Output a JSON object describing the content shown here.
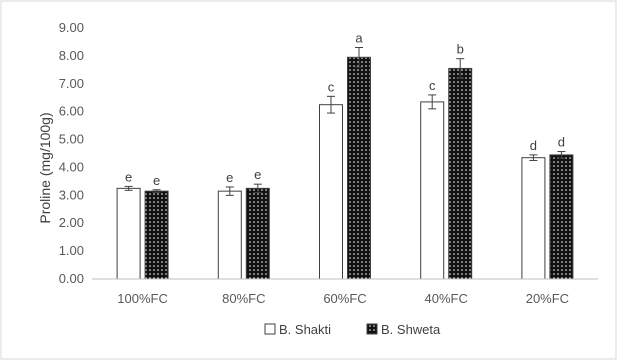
{
  "chart_data": {
    "type": "bar",
    "title": "",
    "xlabel": "",
    "ylabel": "Proline (mg/100g)",
    "ylim": [
      0,
      9
    ],
    "ytick_step": 1,
    "ytick_labels": [
      "0.00",
      "1.00",
      "2.00",
      "3.00",
      "4.00",
      "5.00",
      "6.00",
      "7.00",
      "8.00",
      "9.00"
    ],
    "categories": [
      "100%FC",
      "80%FC",
      "60%FC",
      "40%FC",
      "20%FC"
    ],
    "grid": false,
    "legend_position": "bottom",
    "series": [
      {
        "name": "B. Shakti",
        "fill": "white",
        "values": [
          3.25,
          3.15,
          6.25,
          6.35,
          4.35
        ],
        "errors": [
          0.07,
          0.15,
          0.3,
          0.25,
          0.1
        ],
        "letters": [
          "e",
          "e",
          "c",
          "c",
          "d"
        ]
      },
      {
        "name": "B. Shweta",
        "fill": "dotted-black",
        "values": [
          3.15,
          3.25,
          7.95,
          7.55,
          4.45
        ],
        "errors": [
          0.05,
          0.15,
          0.35,
          0.35,
          0.12
        ],
        "letters": [
          "e",
          "e",
          "a",
          "b",
          "d"
        ]
      }
    ]
  }
}
